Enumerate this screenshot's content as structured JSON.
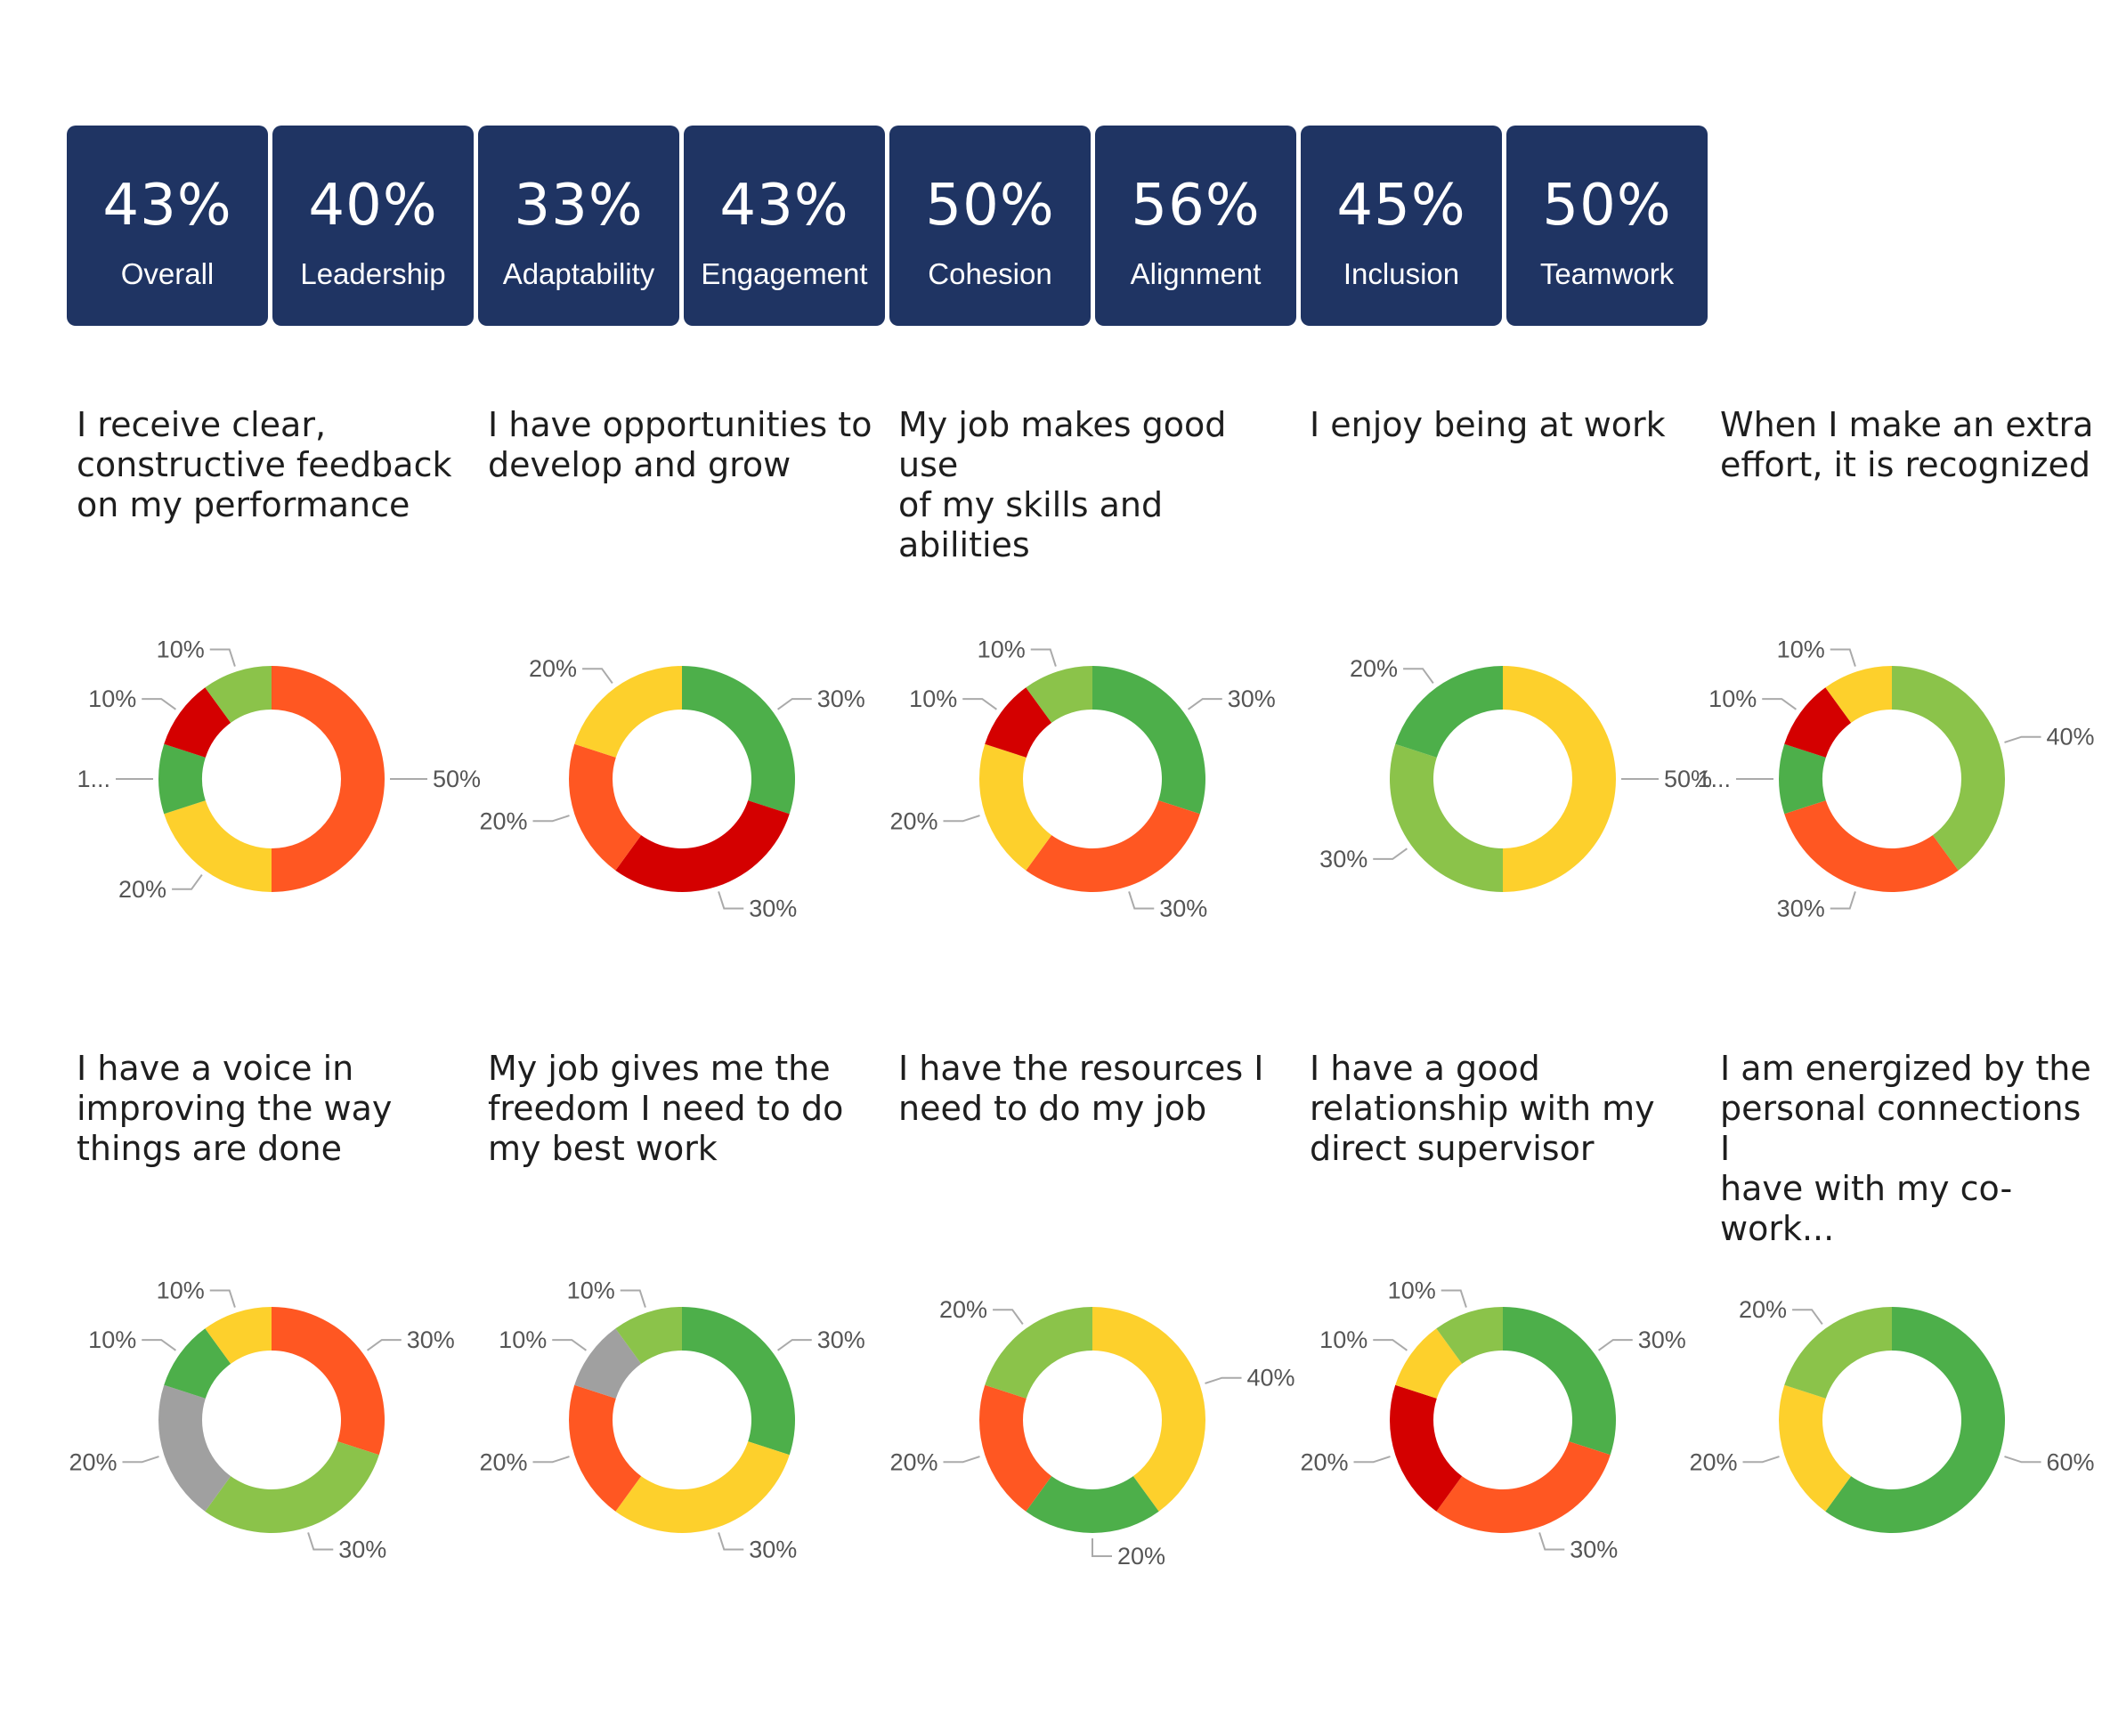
{
  "colors": {
    "card_bg": "#1f3463",
    "dark_green": "#4daf4a",
    "light_green": "#8bc34a",
    "yellow": "#fdd02c",
    "orange": "#ff5722",
    "red": "#d40000",
    "gray": "#a0a0a0"
  },
  "summary_cards": [
    {
      "value": "43%",
      "label": "Overall"
    },
    {
      "value": "40%",
      "label": "Leadership"
    },
    {
      "value": "33%",
      "label": "Adaptability"
    },
    {
      "value": "43%",
      "label": "Engagement"
    },
    {
      "value": "50%",
      "label": "Cohesion"
    },
    {
      "value": "56%",
      "label": "Alignment"
    },
    {
      "value": "45%",
      "label": "Inclusion"
    },
    {
      "value": "50%",
      "label": "Teamwork"
    }
  ],
  "chart_data": [
    {
      "type": "pie",
      "title": "I receive clear,\nconstructive feedback\non my performance",
      "slices": [
        {
          "color": "orange",
          "value": 50,
          "label": "50%"
        },
        {
          "color": "yellow",
          "value": 20,
          "label": "20%"
        },
        {
          "color": "dark_green",
          "value": 10,
          "label": "1..."
        },
        {
          "color": "red",
          "value": 10,
          "label": "10%"
        },
        {
          "color": "light_green",
          "value": 10,
          "label": "10%"
        }
      ]
    },
    {
      "type": "pie",
      "title": "I have opportunities to\ndevelop and grow",
      "slices": [
        {
          "color": "dark_green",
          "value": 30,
          "label": "30%"
        },
        {
          "color": "red",
          "value": 30,
          "label": "30%"
        },
        {
          "color": "orange",
          "value": 20,
          "label": "20%"
        },
        {
          "color": "yellow",
          "value": 20,
          "label": "20%"
        }
      ]
    },
    {
      "type": "pie",
      "title": "My job makes good use\nof my skills and abilities",
      "slices": [
        {
          "color": "dark_green",
          "value": 30,
          "label": "30%"
        },
        {
          "color": "orange",
          "value": 30,
          "label": "30%"
        },
        {
          "color": "yellow",
          "value": 20,
          "label": "20%"
        },
        {
          "color": "red",
          "value": 10,
          "label": "10%"
        },
        {
          "color": "light_green",
          "value": 10,
          "label": "10%"
        }
      ]
    },
    {
      "type": "pie",
      "title": "I enjoy being at work",
      "slices": [
        {
          "color": "yellow",
          "value": 50,
          "label": "50%"
        },
        {
          "color": "light_green",
          "value": 30,
          "label": "30%"
        },
        {
          "color": "dark_green",
          "value": 20,
          "label": "20%"
        }
      ]
    },
    {
      "type": "pie",
      "title": "When I make an extra\neffort, it is recognized",
      "slices": [
        {
          "color": "light_green",
          "value": 40,
          "label": "40%"
        },
        {
          "color": "orange",
          "value": 30,
          "label": "30%"
        },
        {
          "color": "dark_green",
          "value": 10,
          "label": "1..."
        },
        {
          "color": "red",
          "value": 10,
          "label": "10%"
        },
        {
          "color": "yellow",
          "value": 10,
          "label": "10%"
        }
      ]
    },
    {
      "type": "pie",
      "title": "I have a voice in\nimproving the way\nthings are done",
      "slices": [
        {
          "color": "orange",
          "value": 30,
          "label": "30%"
        },
        {
          "color": "light_green",
          "value": 30,
          "label": "30%"
        },
        {
          "color": "gray",
          "value": 20,
          "label": "20%"
        },
        {
          "color": "dark_green",
          "value": 10,
          "label": "10%"
        },
        {
          "color": "yellow",
          "value": 10,
          "label": "10%"
        }
      ]
    },
    {
      "type": "pie",
      "title": "My job gives me the\nfreedom I need to do\nmy best work",
      "slices": [
        {
          "color": "dark_green",
          "value": 30,
          "label": "30%"
        },
        {
          "color": "yellow",
          "value": 30,
          "label": "30%"
        },
        {
          "color": "orange",
          "value": 20,
          "label": "20%"
        },
        {
          "color": "gray",
          "value": 10,
          "label": "10%"
        },
        {
          "color": "light_green",
          "value": 10,
          "label": "10%"
        }
      ]
    },
    {
      "type": "pie",
      "title": "I have the resources I\nneed to do my job",
      "slices": [
        {
          "color": "yellow",
          "value": 40,
          "label": "40%"
        },
        {
          "color": "dark_green",
          "value": 20,
          "label": "20%"
        },
        {
          "color": "orange",
          "value": 20,
          "label": "20%"
        },
        {
          "color": "light_green",
          "value": 20,
          "label": "20%"
        }
      ]
    },
    {
      "type": "pie",
      "title": "I have a good\nrelationship with my\ndirect supervisor",
      "slices": [
        {
          "color": "dark_green",
          "value": 30,
          "label": "30%"
        },
        {
          "color": "orange",
          "value": 30,
          "label": "30%"
        },
        {
          "color": "red",
          "value": 20,
          "label": "20%"
        },
        {
          "color": "yellow",
          "value": 10,
          "label": "10%"
        },
        {
          "color": "light_green",
          "value": 10,
          "label": "10%"
        }
      ]
    },
    {
      "type": "pie",
      "title": "I am energized by the\npersonal connections I\nhave with my co-work...",
      "slices": [
        {
          "color": "dark_green",
          "value": 60,
          "label": "60%"
        },
        {
          "color": "yellow",
          "value": 20,
          "label": "20%"
        },
        {
          "color": "light_green",
          "value": 20,
          "label": "20%"
        }
      ]
    }
  ]
}
